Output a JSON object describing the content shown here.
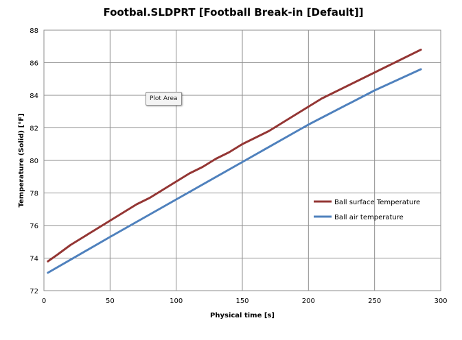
{
  "chart_data": {
    "type": "line",
    "title": "Footbal.SLDPRT [Football Break-in [Default]]",
    "xlabel": "Physical time [s]",
    "ylabel": "Temperature (Solid) [°F]",
    "xlim": [
      0,
      300
    ],
    "ylim": [
      72,
      88
    ],
    "x_ticks": [
      0,
      50,
      100,
      150,
      200,
      250,
      300
    ],
    "y_ticks": [
      72,
      74,
      76,
      78,
      80,
      82,
      84,
      86,
      88
    ],
    "grid": true,
    "legend_position": "right",
    "series": [
      {
        "name": "Ball surface Temperature",
        "color": "#943634",
        "points": [
          [
            3,
            73.8
          ],
          [
            10,
            74.2
          ],
          [
            20,
            74.8
          ],
          [
            30,
            75.3
          ],
          [
            40,
            75.8
          ],
          [
            50,
            76.3
          ],
          [
            60,
            76.8
          ],
          [
            70,
            77.3
          ],
          [
            80,
            77.7
          ],
          [
            90,
            78.2
          ],
          [
            100,
            78.7
          ],
          [
            110,
            79.2
          ],
          [
            120,
            79.6
          ],
          [
            130,
            80.1
          ],
          [
            140,
            80.5
          ],
          [
            150,
            81.0
          ],
          [
            160,
            81.4
          ],
          [
            170,
            81.8
          ],
          [
            180,
            82.3
          ],
          [
            190,
            82.8
          ],
          [
            200,
            83.3
          ],
          [
            210,
            83.8
          ],
          [
            220,
            84.2
          ],
          [
            230,
            84.6
          ],
          [
            240,
            85.0
          ],
          [
            250,
            85.4
          ],
          [
            260,
            85.8
          ],
          [
            270,
            86.2
          ],
          [
            280,
            86.6
          ],
          [
            285,
            86.8
          ]
        ]
      },
      {
        "name": "Ball air temperature",
        "color": "#4f81bd",
        "points": [
          [
            3,
            73.1
          ],
          [
            50,
            75.3
          ],
          [
            100,
            77.6
          ],
          [
            150,
            79.9
          ],
          [
            200,
            82.2
          ],
          [
            250,
            84.3
          ],
          [
            285,
            85.6
          ]
        ]
      }
    ]
  },
  "tooltip": {
    "label": "Plot Area"
  }
}
